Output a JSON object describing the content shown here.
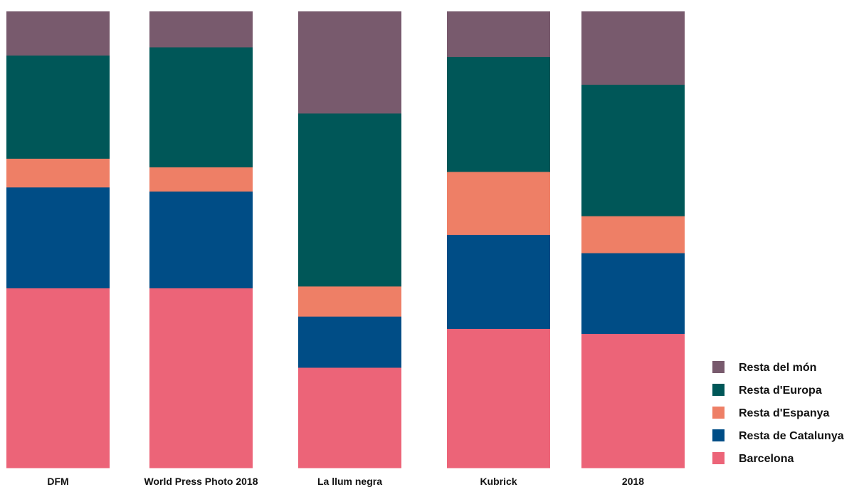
{
  "chart_data": {
    "type": "bar",
    "stacked": true,
    "normalized": true,
    "categories": [
      "DFM",
      "World Press Photo 2018",
      "La llum negra",
      "Kubrick",
      "2018"
    ],
    "series": [
      {
        "name": "Barcelona",
        "color": "#EC6478",
        "values": [
          0.394,
          0.394,
          0.22,
          0.305,
          0.294
        ]
      },
      {
        "name": "Resta de Catalunya",
        "color": "#004D86",
        "values": [
          0.221,
          0.212,
          0.112,
          0.206,
          0.177
        ]
      },
      {
        "name": "Resta d'Espanya",
        "color": "#EE7F66",
        "values": [
          0.063,
          0.053,
          0.066,
          0.138,
          0.081
        ]
      },
      {
        "name": "Resta d'Europa",
        "color": "#005758",
        "values": [
          0.226,
          0.263,
          0.379,
          0.252,
          0.288
        ]
      },
      {
        "name": "Resta del món",
        "color": "#785A6D",
        "values": [
          0.096,
          0.078,
          0.223,
          0.099,
          0.16
        ]
      }
    ],
    "ylim": [
      0,
      1
    ],
    "grid": false,
    "legend": {
      "position": "bottom-right",
      "order": [
        "Resta del món",
        "Resta d'Europa",
        "Resta d'Espanya",
        "Resta de Catalunya",
        "Barcelona"
      ]
    }
  }
}
